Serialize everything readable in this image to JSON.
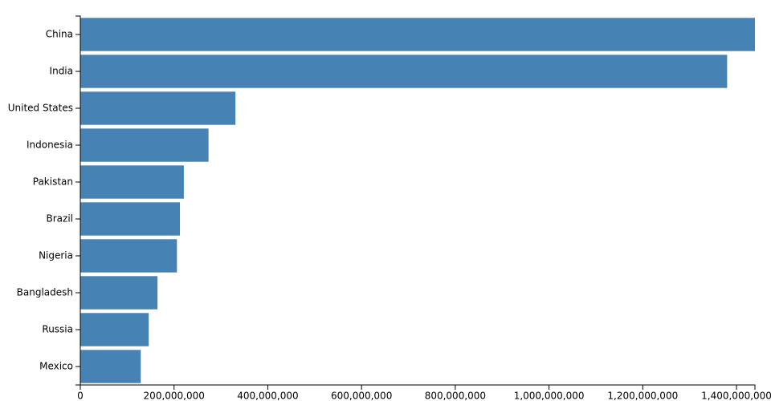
{
  "chart_data": {
    "type": "bar",
    "orientation": "horizontal",
    "categories": [
      "China",
      "India",
      "United States",
      "Indonesia",
      "Pakistan",
      "Brazil",
      "Nigeria",
      "Bangladesh",
      "Russia",
      "Mexico"
    ],
    "values": [
      1439323776,
      1380004385,
      331002651,
      273523615,
      220892340,
      212559417,
      206139589,
      164689383,
      145934462,
      128932753
    ],
    "color": "#4682b4",
    "xlim": [
      0,
      1439323776
    ],
    "xticks": [
      0,
      {
        "value": 200000000,
        "label": "200,000,000"
      },
      {
        "value": 400000000,
        "label": "400,000,000"
      },
      {
        "value": 600000000,
        "label": "600,000,000"
      },
      {
        "value": 800000000,
        "label": "800,000,000"
      },
      {
        "value": 1000000000,
        "label": "1,000,000,000"
      },
      {
        "value": 1200000000,
        "label": "1,200,000,000"
      },
      {
        "value": 1400000000,
        "label": "1,400,000,000"
      }
    ],
    "grid": false
  }
}
